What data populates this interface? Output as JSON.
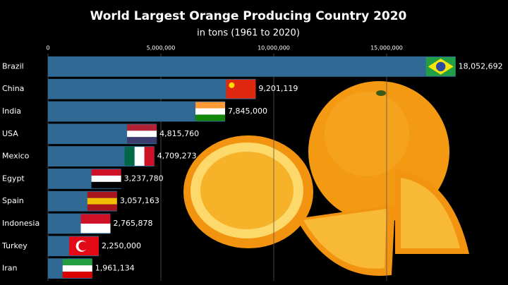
{
  "chart_data": {
    "type": "bar",
    "orientation": "horizontal",
    "title": "World Largest Orange Producing Country 2020",
    "subtitle": "in tons (1961 to 2020)",
    "categories": [
      "Brazil",
      "China",
      "India",
      "USA",
      "Mexico",
      "Egypt",
      "Spain",
      "Indonesia",
      "Turkey",
      "Iran"
    ],
    "values": [
      18052692,
      9201119,
      7845000,
      4815760,
      4709273,
      3237780,
      3057163,
      2765878,
      2250000,
      1961134
    ],
    "value_labels": [
      "18,052,692",
      "9,201,119",
      "7,845,000",
      "4,815,760",
      "4,709,273",
      "3,237,780",
      "3,057,163",
      "2,765,878",
      "2,250,000",
      "1,961,134"
    ],
    "color": "#2f6994",
    "xlim": [
      0,
      20000000
    ],
    "xticks": [
      0,
      {
        "value": 5000000,
        "label": "5,000,000"
      },
      {
        "value": 10000000,
        "label": "10,000,000"
      },
      {
        "value": 15000000,
        "label": "15,000,000"
      }
    ],
    "grid": true
  }
}
